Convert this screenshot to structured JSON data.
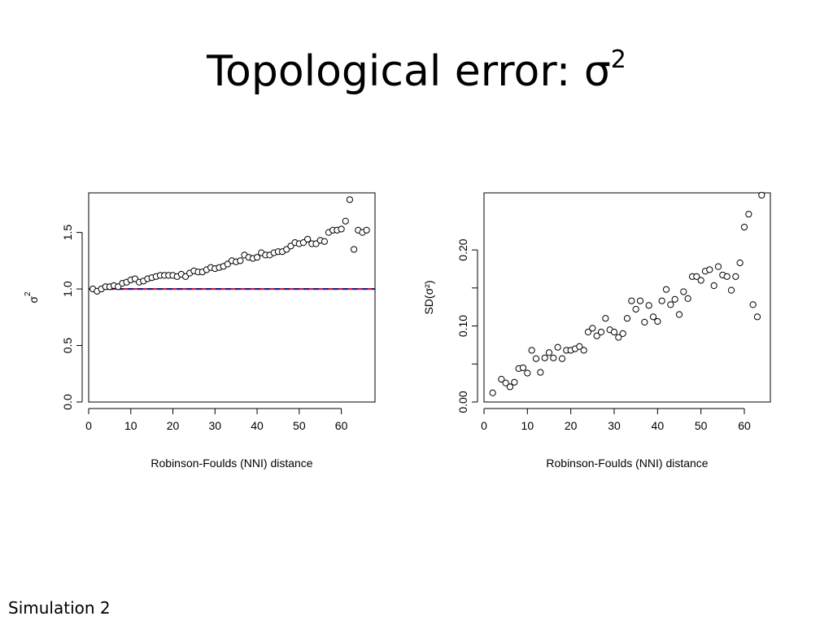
{
  "slide": {
    "title_text": "Topological error: σ",
    "title_sup": "2",
    "footer": "Simulation 2"
  },
  "colors": {
    "reference_line_red": "#dd1133",
    "reference_line_blue": "#1a1a99",
    "point_stroke": "#000000"
  },
  "chart_data": [
    {
      "type": "scatter",
      "title": "",
      "xlabel": "Robinson-Foulds (NNI) distance",
      "ylabel": "σ",
      "ylabel_sup": "2",
      "xlim": [
        0,
        68
      ],
      "ylim": [
        0,
        1.85
      ],
      "xticks": [
        0,
        10,
        20,
        30,
        40,
        50,
        60
      ],
      "yticks": [
        0.0,
        0.5,
        1.0,
        1.5
      ],
      "ytick_labels": [
        "0.0",
        "0.5",
        "1.0",
        "1.5"
      ],
      "reference_line_y": 1.0,
      "reference_line_style": "red-blue-dashed",
      "grid": false,
      "marker": "open-circle",
      "x": [
        1,
        2,
        3,
        4,
        5,
        6,
        7,
        8,
        9,
        10,
        11,
        12,
        13,
        14,
        15,
        16,
        17,
        18,
        19,
        20,
        21,
        22,
        23,
        24,
        25,
        26,
        27,
        28,
        29,
        30,
        31,
        32,
        33,
        34,
        35,
        36,
        37,
        38,
        39,
        40,
        41,
        42,
        43,
        44,
        45,
        46,
        47,
        48,
        49,
        50,
        51,
        52,
        53,
        54,
        55,
        56,
        57,
        58,
        59,
        60,
        61,
        62,
        63,
        64,
        65,
        66
      ],
      "y": [
        1.0,
        0.98,
        1.0,
        1.02,
        1.02,
        1.03,
        1.02,
        1.05,
        1.06,
        1.08,
        1.09,
        1.06,
        1.07,
        1.09,
        1.1,
        1.11,
        1.12,
        1.12,
        1.12,
        1.12,
        1.11,
        1.13,
        1.11,
        1.14,
        1.16,
        1.15,
        1.15,
        1.17,
        1.19,
        1.18,
        1.19,
        1.2,
        1.22,
        1.25,
        1.24,
        1.25,
        1.3,
        1.28,
        1.27,
        1.28,
        1.32,
        1.3,
        1.3,
        1.32,
        1.33,
        1.33,
        1.35,
        1.38,
        1.41,
        1.4,
        1.41,
        1.44,
        1.4,
        1.4,
        1.43,
        1.42,
        1.5,
        1.52,
        1.52,
        1.53,
        1.6,
        1.79,
        1.35,
        1.52,
        1.5,
        1.52
      ]
    },
    {
      "type": "scatter",
      "title": "",
      "xlabel": "Robinson-Foulds (NNI) distance",
      "ylabel": "SD(σ²)",
      "xlim": [
        0,
        66
      ],
      "ylim": [
        0,
        0.275
      ],
      "xticks": [
        0,
        10,
        20,
        30,
        40,
        50,
        60
      ],
      "yticks": [
        0.0,
        0.05,
        0.1,
        0.15,
        0.2
      ],
      "ytick_labels": [
        "0.00",
        "",
        "0.10",
        "",
        "0.20"
      ],
      "grid": false,
      "marker": "open-circle",
      "x": [
        2,
        4,
        5,
        6,
        7,
        8,
        9,
        10,
        11,
        12,
        13,
        14,
        15,
        16,
        17,
        18,
        19,
        20,
        21,
        22,
        23,
        24,
        25,
        26,
        27,
        28,
        29,
        30,
        31,
        32,
        33,
        34,
        35,
        36,
        37,
        38,
        39,
        40,
        41,
        42,
        43,
        44,
        45,
        46,
        47,
        48,
        49,
        50,
        51,
        52,
        53,
        54,
        55,
        56,
        57,
        58,
        59,
        60,
        61,
        62,
        63,
        64
      ],
      "y": [
        0.012,
        0.03,
        0.025,
        0.02,
        0.026,
        0.044,
        0.045,
        0.038,
        0.068,
        0.057,
        0.039,
        0.058,
        0.065,
        0.058,
        0.072,
        0.057,
        0.068,
        0.068,
        0.07,
        0.073,
        0.068,
        0.092,
        0.097,
        0.087,
        0.092,
        0.11,
        0.095,
        0.092,
        0.085,
        0.09,
        0.11,
        0.133,
        0.122,
        0.133,
        0.105,
        0.127,
        0.112,
        0.106,
        0.133,
        0.148,
        0.128,
        0.135,
        0.115,
        0.145,
        0.136,
        0.165,
        0.165,
        0.16,
        0.172,
        0.174,
        0.153,
        0.178,
        0.167,
        0.165,
        0.147,
        0.165,
        0.183,
        0.23,
        0.247,
        0.128,
        0.112,
        0.272
      ]
    }
  ]
}
